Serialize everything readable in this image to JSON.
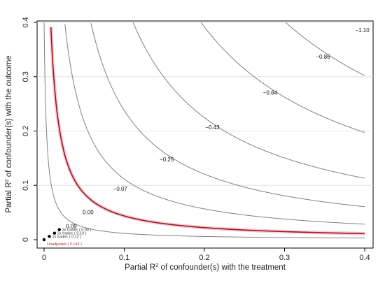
{
  "chart_data": {
    "type": "line",
    "title": "",
    "xlabel": "Partial R",
    "xlabel_sup": "2",
    "xlabel_rest": " of confounder(s) with the treatment",
    "ylabel": "Partial R",
    "ylabel_sup": "2",
    "ylabel_rest": " of confounder(s) with the outcome",
    "xlim": [
      0,
      0.4
    ],
    "ylim": [
      0,
      0.4
    ],
    "xticks": [
      "0",
      "0.1",
      "0.2",
      "0.3",
      "0.4"
    ],
    "yticks": [
      "0",
      "0.1",
      "0.2",
      "0.3",
      "0.4"
    ],
    "grid": true,
    "contours": [
      {
        "label": "0.09",
        "k": 0.0012,
        "color": "#808080",
        "label_x": 0.034,
        "label_y": 0.025
      },
      {
        "label": "0.00",
        "k": 0.0045,
        "color": "#9b1b1b",
        "highlight": true,
        "label_x": 0.055,
        "label_y": 0.051
      },
      {
        "label": "−0.07",
        "k": 0.0115,
        "color": "#808080",
        "label_x": 0.095,
        "label_y": 0.094
      },
      {
        "label": "−0.25",
        "k": 0.0245,
        "color": "#808080",
        "label_x": 0.153,
        "label_y": 0.148
      },
      {
        "label": "−0.43",
        "k": 0.0456,
        "color": "#808080",
        "label_x": 0.21,
        "label_y": 0.207
      },
      {
        "label": "−0.64",
        "k": 0.0795,
        "color": "#808080",
        "label_x": 0.282,
        "label_y": 0.271
      },
      {
        "label": "−0.86",
        "k": 0.1217,
        "color": "#808080",
        "label_x": 0.348,
        "label_y": 0.337
      },
      {
        "label": "−1.10",
        "k": 0.1656,
        "color": "#808080",
        "label_x": 0.397,
        "label_y": 0.386
      }
    ],
    "benchmarks": [
      {
        "label": "Unadjusted ( 0.143 )",
        "x": 0.0,
        "y": 0.0,
        "red": true
      },
      {
        "label": "1x tradec ( 0.12 )",
        "x": 0.0065,
        "y": 0.006
      },
      {
        "label": "2x tradec ( 0.10 )",
        "x": 0.013,
        "y": 0.012
      },
      {
        "label": "3x tradec ( 0.09 )",
        "x": 0.019,
        "y": 0.0185
      }
    ]
  }
}
